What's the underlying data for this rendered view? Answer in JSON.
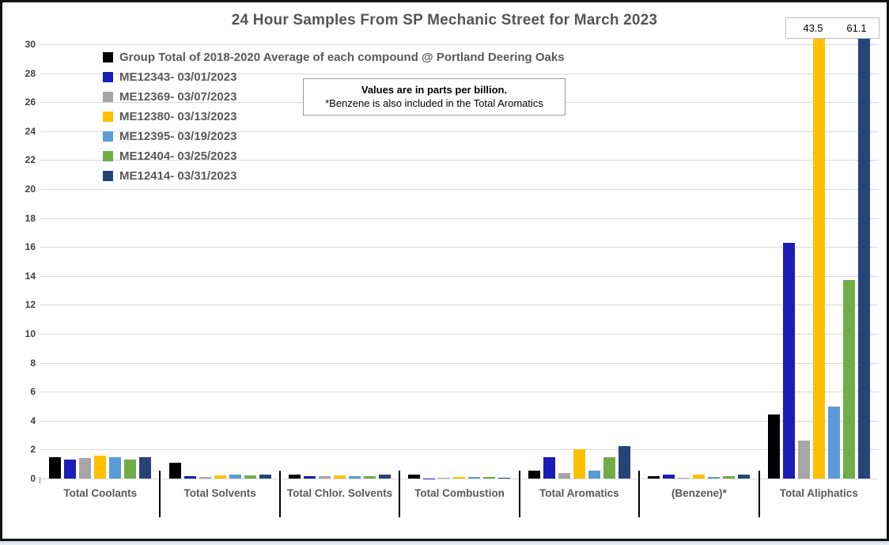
{
  "chart_data": {
    "type": "bar",
    "title": "24 Hour Samples From SP Mechanic Street for March 2023",
    "note": {
      "line1": "Values are in parts per billion.",
      "line2": "*Benzene is also included in the Total Aromatics"
    },
    "ylim": [
      0,
      30
    ],
    "ytick_step": 2,
    "grid": true,
    "legend_position": "top-left-inside",
    "categories": [
      "Total Coolants",
      "Total Solvents",
      "Total Chlor. Solvents",
      "Total Combustion",
      "Total Aromatics",
      "(Benzene)*",
      "Total Aliphatics"
    ],
    "series": [
      {
        "name": "Group Total of 2018-2020 Average of each compound @ Portland Deering Oaks",
        "color": "#000000",
        "values": [
          1.5,
          1.1,
          0.3,
          0.25,
          0.55,
          0.15,
          4.4
        ]
      },
      {
        "name": "ME12343- 03/01/2023",
        "color": "#1c1cb8",
        "values": [
          1.3,
          0.15,
          0.15,
          0.02,
          1.45,
          0.25,
          16.3
        ]
      },
      {
        "name": "ME12369- 03/07/2023",
        "color": "#a6a6a6",
        "values": [
          1.4,
          0.1,
          0.15,
          0.08,
          0.4,
          0.05,
          2.6
        ]
      },
      {
        "name": "ME12380- 03/13/2023",
        "color": "#ffc000",
        "values": [
          1.6,
          0.2,
          0.2,
          0.1,
          2.05,
          0.3,
          43.5
        ]
      },
      {
        "name": "ME12395- 03/19/2023",
        "color": "#5b9bd5",
        "values": [
          1.45,
          0.25,
          0.15,
          0.1,
          0.55,
          0.1,
          5.0
        ]
      },
      {
        "name": "ME12404- 03/25/2023",
        "color": "#70ad47",
        "values": [
          1.3,
          0.2,
          0.15,
          0.1,
          1.45,
          0.15,
          13.7
        ]
      },
      {
        "name": "ME12414- 03/31/2023",
        "color": "#264478",
        "values": [
          1.5,
          0.25,
          0.25,
          0.08,
          2.25,
          0.25,
          61.1
        ]
      }
    ],
    "overflow_labels": [
      "43.5",
      "61.1"
    ],
    "overflow_note": "yellow and navy Total Aliphatics bars are clipped at the 30 ppb axis maximum"
  }
}
